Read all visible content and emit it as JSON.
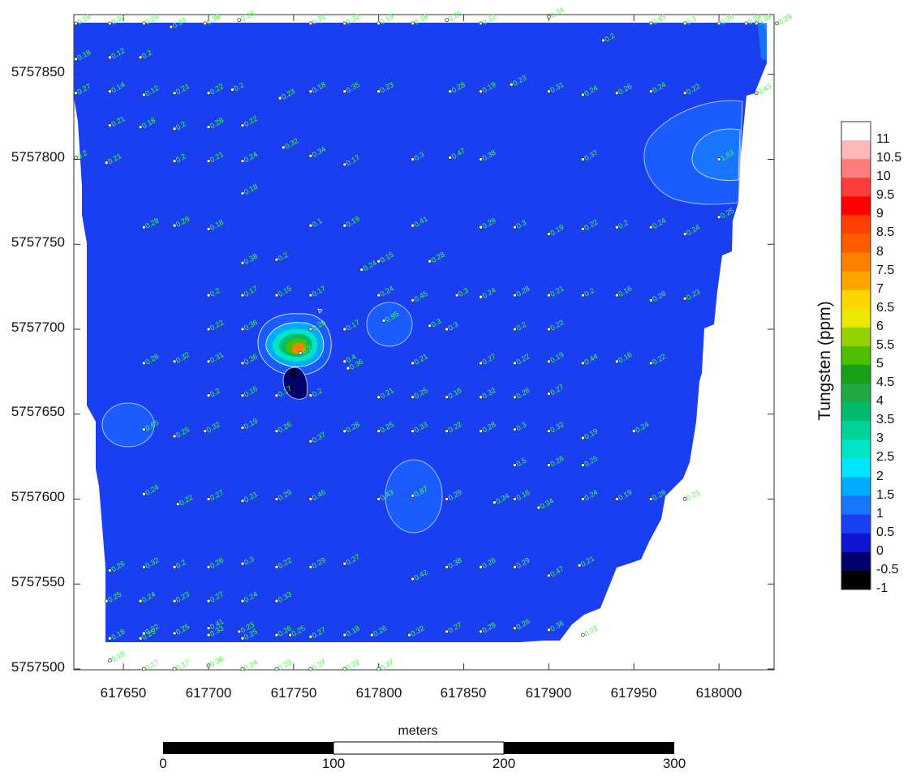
{
  "map": {
    "colorbar_title": "Tungsten (ppm)",
    "x_ticks": [
      "617650",
      "617700",
      "617750",
      "617800",
      "617850",
      "617900",
      "617950",
      "618000"
    ],
    "y_ticks": [
      "5757850",
      "5757800",
      "5757750",
      "5757700",
      "5757650",
      "5757600",
      "5757550",
      "5757500"
    ],
    "colorbar_labels": [
      "11",
      "10.5",
      "10",
      "9.5",
      "9",
      "8.5",
      "8",
      "7.5",
      "7",
      "6.5",
      "6",
      "5.5",
      "5",
      "4.5",
      "4",
      "3.5",
      "3",
      "2.5",
      "2",
      "1.5",
      "1",
      "0.5",
      "0",
      "-0.5",
      "-1"
    ],
    "colorbar_colors": [
      "#ffffff",
      "#ffb8b8",
      "#ff7c7c",
      "#ff3c3c",
      "#ff0000",
      "#ff4000",
      "#ff5a00",
      "#ff8000",
      "#ffa500",
      "#ffd700",
      "#e8e800",
      "#96d200",
      "#4cc000",
      "#18a018",
      "#21a845",
      "#00bc6c",
      "#00d39a",
      "#00e5c5",
      "#00e5ff",
      "#00aaff",
      "#1875ff",
      "#1a3ff0",
      "#0f14d0",
      "#00006a",
      "#000000"
    ],
    "scale_bar": {
      "title": "meters",
      "labels": [
        "0",
        "100",
        "200",
        "300"
      ]
    },
    "x_range": [
      617622,
      618032
    ],
    "y_range": [
      5757498,
      5757880
    ],
    "samples": [
      {
        "x": 617622,
        "y": 5757880,
        "v": "0.19"
      },
      {
        "x": 617642,
        "y": 5757880,
        "v": "0.34"
      },
      {
        "x": 617662,
        "y": 5757880,
        "v": "0.24"
      },
      {
        "x": 617678,
        "y": 5757878,
        "v": "0.23"
      },
      {
        "x": 617698,
        "y": 5757880,
        "v": "0.38"
      },
      {
        "x": 617718,
        "y": 5757882,
        "v": "0.28"
      },
      {
        "x": 617760,
        "y": 5757880,
        "v": "0.21"
      },
      {
        "x": 617780,
        "y": 5757880,
        "v": "0.32"
      },
      {
        "x": 617800,
        "y": 5757880,
        "v": "0.19"
      },
      {
        "x": 617820,
        "y": 5757880,
        "v": "0.18"
      },
      {
        "x": 617840,
        "y": 5757882,
        "v": "0.26"
      },
      {
        "x": 617860,
        "y": 5757880,
        "v": "0.32"
      },
      {
        "x": 617900,
        "y": 5757884,
        "v": "0.24"
      },
      {
        "x": 617960,
        "y": 5757880,
        "v": "0.45"
      },
      {
        "x": 617980,
        "y": 5757880,
        "v": "0.3"
      },
      {
        "x": 618000,
        "y": 5757880,
        "v": "0.26"
      },
      {
        "x": 618016,
        "y": 5757880,
        "v": "0.24"
      },
      {
        "x": 618022,
        "y": 5757880,
        "v": "0.38"
      },
      {
        "x": 618034,
        "y": 5757880,
        "v": "2.29"
      },
      {
        "x": 617622,
        "y": 5757859,
        "v": "0.18"
      },
      {
        "x": 617642,
        "y": 5757860,
        "v": "0.12"
      },
      {
        "x": 617660,
        "y": 5757860,
        "v": "0.2"
      },
      {
        "x": 617932,
        "y": 5757870,
        "v": "0.2"
      },
      {
        "x": 617622,
        "y": 5757839,
        "v": "0.27"
      },
      {
        "x": 617642,
        "y": 5757840,
        "v": "0.14"
      },
      {
        "x": 617662,
        "y": 5757838,
        "v": "0.12"
      },
      {
        "x": 617680,
        "y": 5757839,
        "v": "0.21"
      },
      {
        "x": 617700,
        "y": 5757839,
        "v": "0.22"
      },
      {
        "x": 617714,
        "y": 5757841,
        "v": "0.2"
      },
      {
        "x": 617742,
        "y": 5757836,
        "v": "0.23"
      },
      {
        "x": 617760,
        "y": 5757840,
        "v": "0.18"
      },
      {
        "x": 617780,
        "y": 5757840,
        "v": "0.35"
      },
      {
        "x": 617800,
        "y": 5757840,
        "v": "0.23"
      },
      {
        "x": 617842,
        "y": 5757840,
        "v": "0.28"
      },
      {
        "x": 617860,
        "y": 5757840,
        "v": "0.19"
      },
      {
        "x": 617878,
        "y": 5757844,
        "v": "0.23"
      },
      {
        "x": 617900,
        "y": 5757840,
        "v": "0.31"
      },
      {
        "x": 617920,
        "y": 5757838,
        "v": "0.24"
      },
      {
        "x": 617940,
        "y": 5757839,
        "v": "0.26"
      },
      {
        "x": 617960,
        "y": 5757840,
        "v": "0.24"
      },
      {
        "x": 617980,
        "y": 5757839,
        "v": "0.22"
      },
      {
        "x": 618022,
        "y": 5757839,
        "v": "0.43"
      },
      {
        "x": 617642,
        "y": 5757820,
        "v": "0.21"
      },
      {
        "x": 617660,
        "y": 5757819,
        "v": "0.18"
      },
      {
        "x": 617680,
        "y": 5757818,
        "v": "0.2"
      },
      {
        "x": 617700,
        "y": 5757819,
        "v": "0.28"
      },
      {
        "x": 617720,
        "y": 5757820,
        "v": "0.22"
      },
      {
        "x": 617622,
        "y": 5757801,
        "v": "0.2"
      },
      {
        "x": 617640,
        "y": 5757798,
        "v": "0.21"
      },
      {
        "x": 617680,
        "y": 5757799,
        "v": "0.2"
      },
      {
        "x": 617700,
        "y": 5757799,
        "v": "0.21"
      },
      {
        "x": 617720,
        "y": 5757799,
        "v": "0.24"
      },
      {
        "x": 617744,
        "y": 5757807,
        "v": "0.32"
      },
      {
        "x": 617760,
        "y": 5757802,
        "v": "0.34"
      },
      {
        "x": 617780,
        "y": 5757797,
        "v": "0.17"
      },
      {
        "x": 617820,
        "y": 5757800,
        "v": "0.3"
      },
      {
        "x": 617842,
        "y": 5757801,
        "v": "0.47"
      },
      {
        "x": 617860,
        "y": 5757800,
        "v": "0.38"
      },
      {
        "x": 617920,
        "y": 5757800,
        "v": "0.37"
      },
      {
        "x": 618000,
        "y": 5757800,
        "v": "1.63"
      },
      {
        "x": 617720,
        "y": 5757780,
        "v": "0.18"
      },
      {
        "x": 617662,
        "y": 5757760,
        "v": "0.28"
      },
      {
        "x": 617680,
        "y": 5757761,
        "v": "0.29"
      },
      {
        "x": 617700,
        "y": 5757759,
        "v": "0.18"
      },
      {
        "x": 617760,
        "y": 5757761,
        "v": "0.1"
      },
      {
        "x": 617780,
        "y": 5757761,
        "v": "0.19"
      },
      {
        "x": 617820,
        "y": 5757761,
        "v": "0.41"
      },
      {
        "x": 617860,
        "y": 5757760,
        "v": "0.29"
      },
      {
        "x": 617880,
        "y": 5757760,
        "v": "0.3"
      },
      {
        "x": 617900,
        "y": 5757756,
        "v": "0.19"
      },
      {
        "x": 617920,
        "y": 5757759,
        "v": "0.22"
      },
      {
        "x": 617940,
        "y": 5757760,
        "v": "0.2"
      },
      {
        "x": 617960,
        "y": 5757760,
        "v": "0.24"
      },
      {
        "x": 617980,
        "y": 5757756,
        "v": "0.24"
      },
      {
        "x": 618000,
        "y": 5757766,
        "v": "0.25"
      },
      {
        "x": 617720,
        "y": 5757739,
        "v": "0.38"
      },
      {
        "x": 617740,
        "y": 5757741,
        "v": "0.2"
      },
      {
        "x": 617790,
        "y": 5757735,
        "v": "0.24"
      },
      {
        "x": 617800,
        "y": 5757740,
        "v": "0.15"
      },
      {
        "x": 617830,
        "y": 5757740,
        "v": "0.28"
      },
      {
        "x": 617700,
        "y": 5757720,
        "v": "0.2"
      },
      {
        "x": 617720,
        "y": 5757720,
        "v": "0.17"
      },
      {
        "x": 617740,
        "y": 5757720,
        "v": "0.15"
      },
      {
        "x": 617760,
        "y": 5757720,
        "v": "0.17"
      },
      {
        "x": 617800,
        "y": 5757720,
        "v": "0.24"
      },
      {
        "x": 617820,
        "y": 5757717,
        "v": "0.45"
      },
      {
        "x": 617846,
        "y": 5757720,
        "v": "0.3"
      },
      {
        "x": 617860,
        "y": 5757719,
        "v": "0.24"
      },
      {
        "x": 617880,
        "y": 5757720,
        "v": "0.28"
      },
      {
        "x": 617900,
        "y": 5757720,
        "v": "0.21"
      },
      {
        "x": 617920,
        "y": 5757720,
        "v": "0.2"
      },
      {
        "x": 617940,
        "y": 5757720,
        "v": "0.16"
      },
      {
        "x": 617960,
        "y": 5757717,
        "v": "0.26"
      },
      {
        "x": 617980,
        "y": 5757718,
        "v": "0.23"
      },
      {
        "x": 617700,
        "y": 5757700,
        "v": "0.22"
      },
      {
        "x": 617720,
        "y": 5757700,
        "v": "0.36"
      },
      {
        "x": 617760,
        "y": 5757700,
        "v": "0.26"
      },
      {
        "x": 617780,
        "y": 5757700,
        "v": "0.17"
      },
      {
        "x": 617803,
        "y": 5757705,
        "v": "0.95"
      },
      {
        "x": 617830,
        "y": 5757702,
        "v": "0.3"
      },
      {
        "x": 617840,
        "y": 5757700,
        "v": "0.3"
      },
      {
        "x": 617880,
        "y": 5757700,
        "v": "0.2"
      },
      {
        "x": 617900,
        "y": 5757700,
        "v": "0.22"
      },
      {
        "x": 617662,
        "y": 5757680,
        "v": "0.26"
      },
      {
        "x": 617680,
        "y": 5757681,
        "v": "0.32"
      },
      {
        "x": 617700,
        "y": 5757681,
        "v": "0.31"
      },
      {
        "x": 617720,
        "y": 5757680,
        "v": "0.36"
      },
      {
        "x": 617754,
        "y": 5757686,
        "v": "0.7"
      },
      {
        "x": 617780,
        "y": 5757681,
        "v": "0.4"
      },
      {
        "x": 617782,
        "y": 5757677,
        "v": "0.36"
      },
      {
        "x": 617820,
        "y": 5757680,
        "v": "0.21"
      },
      {
        "x": 617860,
        "y": 5757680,
        "v": "0.27"
      },
      {
        "x": 617880,
        "y": 5757680,
        "v": "0.22"
      },
      {
        "x": 617900,
        "y": 5757681,
        "v": "0.19"
      },
      {
        "x": 617920,
        "y": 5757680,
        "v": "0.44"
      },
      {
        "x": 617940,
        "y": 5757681,
        "v": "0.16"
      },
      {
        "x": 617960,
        "y": 5757680,
        "v": "0.22"
      },
      {
        "x": 617700,
        "y": 5757661,
        "v": "0.2"
      },
      {
        "x": 617720,
        "y": 5757661,
        "v": "0.16"
      },
      {
        "x": 617740,
        "y": 5757661,
        "v": "0.17"
      },
      {
        "x": 617760,
        "y": 5757661,
        "v": "0.2"
      },
      {
        "x": 617800,
        "y": 5757660,
        "v": "0.21"
      },
      {
        "x": 617820,
        "y": 5757660,
        "v": "0.25"
      },
      {
        "x": 617840,
        "y": 5757660,
        "v": "0.16"
      },
      {
        "x": 617860,
        "y": 5757660,
        "v": "0.32"
      },
      {
        "x": 617880,
        "y": 5757660,
        "v": "0.26"
      },
      {
        "x": 617900,
        "y": 5757662,
        "v": "0.27"
      },
      {
        "x": 617662,
        "y": 5757641,
        "v": "0.65"
      },
      {
        "x": 617680,
        "y": 5757637,
        "v": "0.25"
      },
      {
        "x": 617698,
        "y": 5757640,
        "v": "0.32"
      },
      {
        "x": 617720,
        "y": 5757642,
        "v": "0.19"
      },
      {
        "x": 617740,
        "y": 5757640,
        "v": "0.26"
      },
      {
        "x": 617760,
        "y": 5757634,
        "v": "0.37"
      },
      {
        "x": 617780,
        "y": 5757640,
        "v": "0.28"
      },
      {
        "x": 617800,
        "y": 5757640,
        "v": "0.25"
      },
      {
        "x": 617820,
        "y": 5757640,
        "v": "0.33"
      },
      {
        "x": 617840,
        "y": 5757640,
        "v": "0.22"
      },
      {
        "x": 617860,
        "y": 5757640,
        "v": "0.28"
      },
      {
        "x": 617880,
        "y": 5757641,
        "v": "0.3"
      },
      {
        "x": 617900,
        "y": 5757640,
        "v": "0.32"
      },
      {
        "x": 617920,
        "y": 5757636,
        "v": "0.19"
      },
      {
        "x": 617950,
        "y": 5757640,
        "v": "0.24"
      },
      {
        "x": 617880,
        "y": 5757620,
        "v": "0.5"
      },
      {
        "x": 617900,
        "y": 5757620,
        "v": "0.26"
      },
      {
        "x": 617920,
        "y": 5757620,
        "v": "0.25"
      },
      {
        "x": 617662,
        "y": 5757603,
        "v": "0.24"
      },
      {
        "x": 617682,
        "y": 5757597,
        "v": "0.22"
      },
      {
        "x": 617700,
        "y": 5757600,
        "v": "0.27"
      },
      {
        "x": 617720,
        "y": 5757599,
        "v": "0.21"
      },
      {
        "x": 617740,
        "y": 5757600,
        "v": "0.29"
      },
      {
        "x": 617760,
        "y": 5757600,
        "v": "0.46"
      },
      {
        "x": 617800,
        "y": 5757600,
        "v": "0.43"
      },
      {
        "x": 617820,
        "y": 5757602,
        "v": "0.87"
      },
      {
        "x": 617840,
        "y": 5757600,
        "v": "0.29"
      },
      {
        "x": 617868,
        "y": 5757598,
        "v": "0.34"
      },
      {
        "x": 617880,
        "y": 5757600,
        "v": "0.16"
      },
      {
        "x": 617894,
        "y": 5757595,
        "v": "0.34"
      },
      {
        "x": 617920,
        "y": 5757600,
        "v": "0.24"
      },
      {
        "x": 617940,
        "y": 5757600,
        "v": "0.19"
      },
      {
        "x": 617960,
        "y": 5757600,
        "v": "0.28"
      },
      {
        "x": 617980,
        "y": 5757600,
        "v": "0.21"
      },
      {
        "x": 617642,
        "y": 5757558,
        "v": "0.26"
      },
      {
        "x": 617662,
        "y": 5757560,
        "v": "0.32"
      },
      {
        "x": 617680,
        "y": 5757560,
        "v": "0.2"
      },
      {
        "x": 617700,
        "y": 5757560,
        "v": "0.26"
      },
      {
        "x": 617720,
        "y": 5757562,
        "v": "0.3"
      },
      {
        "x": 617740,
        "y": 5757560,
        "v": "0.22"
      },
      {
        "x": 617760,
        "y": 5757560,
        "v": "0.29"
      },
      {
        "x": 617780,
        "y": 5757562,
        "v": "0.27"
      },
      {
        "x": 617820,
        "y": 5757553,
        "v": "0.42"
      },
      {
        "x": 617840,
        "y": 5757560,
        "v": "0.38"
      },
      {
        "x": 617860,
        "y": 5757560,
        "v": "0.26"
      },
      {
        "x": 617880,
        "y": 5757560,
        "v": "0.29"
      },
      {
        "x": 617900,
        "y": 5757555,
        "v": "0.47"
      },
      {
        "x": 617918,
        "y": 5757561,
        "v": "0.21"
      },
      {
        "x": 617640,
        "y": 5757540,
        "v": "0.25"
      },
      {
        "x": 617660,
        "y": 5757540,
        "v": "0.24"
      },
      {
        "x": 617680,
        "y": 5757540,
        "v": "0.23"
      },
      {
        "x": 617700,
        "y": 5757540,
        "v": "0.27"
      },
      {
        "x": 617720,
        "y": 5757540,
        "v": "0.24"
      },
      {
        "x": 617740,
        "y": 5757540,
        "v": "0.33"
      },
      {
        "x": 617700,
        "y": 5757524,
        "v": "0.41"
      },
      {
        "x": 617700,
        "y": 5757520,
        "v": "0.33"
      },
      {
        "x": 617662,
        "y": 5757521,
        "v": "0.32"
      },
      {
        "x": 617680,
        "y": 5757521,
        "v": "0.25"
      },
      {
        "x": 617718,
        "y": 5757522,
        "v": "0.23"
      },
      {
        "x": 617720,
        "y": 5757518,
        "v": "0.25"
      },
      {
        "x": 617740,
        "y": 5757520,
        "v": "0.26"
      },
      {
        "x": 617748,
        "y": 5757520,
        "v": "0.25"
      },
      {
        "x": 617760,
        "y": 5757519,
        "v": "0.27"
      },
      {
        "x": 617780,
        "y": 5757520,
        "v": "0.18"
      },
      {
        "x": 617796,
        "y": 5757520,
        "v": "0.26"
      },
      {
        "x": 617818,
        "y": 5757520,
        "v": "0.32"
      },
      {
        "x": 617840,
        "y": 5757522,
        "v": "0.27"
      },
      {
        "x": 617860,
        "y": 5757522,
        "v": "0.29"
      },
      {
        "x": 617880,
        "y": 5757524,
        "v": "0.26"
      },
      {
        "x": 617900,
        "y": 5757523,
        "v": "0.36"
      },
      {
        "x": 617920,
        "y": 5757520,
        "v": "0.22"
      },
      {
        "x": 617642,
        "y": 5757518,
        "v": "0.18"
      },
      {
        "x": 617660,
        "y": 5757518,
        "v": "0.25"
      },
      {
        "x": 617642,
        "y": 5757505,
        "v": "0.19"
      },
      {
        "x": 617662,
        "y": 5757500,
        "v": "0.17"
      },
      {
        "x": 617680,
        "y": 5757500,
        "v": "0.17"
      },
      {
        "x": 617700,
        "y": 5757502,
        "v": "0.38"
      },
      {
        "x": 617720,
        "y": 5757500,
        "v": "0.24"
      },
      {
        "x": 617740,
        "y": 5757500,
        "v": "0.23"
      },
      {
        "x": 617760,
        "y": 5757500,
        "v": "0.27"
      },
      {
        "x": 617780,
        "y": 5757500,
        "v": "0.22"
      },
      {
        "x": 617800,
        "y": 5757500,
        "v": "0.27"
      }
    ]
  }
}
